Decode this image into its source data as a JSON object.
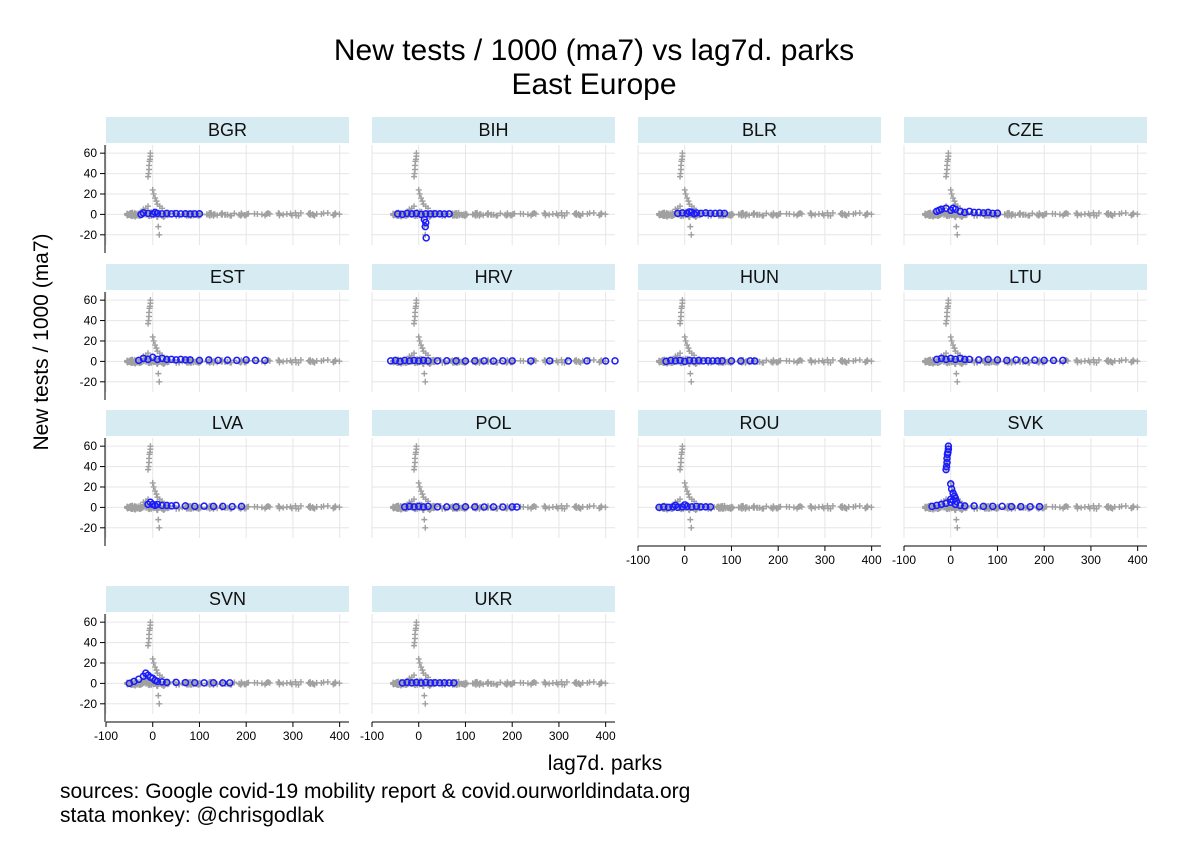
{
  "title": "New tests / 1000 (ma7) vs lag7d. parks",
  "subtitle": "East Europe",
  "ylabel": "New tests / 1000 (ma7)",
  "xlabel": "lag7d. parks",
  "sources": [
    "sources: Google covid-19 mobility report & covid.ourworldindata.org",
    "stata monkey: @chrisgodlak"
  ],
  "colors": {
    "background_points": "#a0a0a0",
    "highlight_points": "#1a1aff",
    "panel_header": "#d6ebf2",
    "grid": "#e6e6e6"
  },
  "chart_data": {
    "type": "scatter",
    "layout": "small multiples (by country), all countries in grey, highlighted country in blue",
    "xlim": [
      -100,
      420
    ],
    "ylim": [
      -30,
      68
    ],
    "xticks": [
      -100,
      0,
      100,
      200,
      300,
      400
    ],
    "yticks": [
      -20,
      0,
      20,
      40,
      60
    ],
    "grid": true,
    "background_series": {
      "marker": "plus",
      "color": "#a0a0a0",
      "band": {
        "x_from": -55,
        "x_to": 420,
        "y_center": 0,
        "y_halfwidth": 1.5
      },
      "spike_points": [
        {
          "x": -5,
          "y": 60
        },
        {
          "x": -5,
          "y": 57
        },
        {
          "x": -6,
          "y": 54
        },
        {
          "x": -7,
          "y": 52
        },
        {
          "x": -8,
          "y": 48
        },
        {
          "x": -8,
          "y": 44
        },
        {
          "x": -9,
          "y": 40
        },
        {
          "x": -10,
          "y": 37
        },
        {
          "x": 0,
          "y": 24
        },
        {
          "x": 2,
          "y": 20
        },
        {
          "x": 5,
          "y": 16
        },
        {
          "x": 8,
          "y": 13
        },
        {
          "x": 10,
          "y": 10
        },
        {
          "x": 15,
          "y": 8
        },
        {
          "x": 20,
          "y": 6
        },
        {
          "x": -10,
          "y": 8
        },
        {
          "x": -15,
          "y": 6
        },
        {
          "x": -20,
          "y": 5
        },
        {
          "x": 12,
          "y": -12
        },
        {
          "x": 14,
          "y": -20
        }
      ]
    },
    "panels": [
      {
        "name": "BGR",
        "points": [
          [
            -25,
            0
          ],
          [
            -10,
            1
          ],
          [
            0,
            0.5
          ],
          [
            10,
            1
          ],
          [
            20,
            0.5
          ],
          [
            30,
            1
          ],
          [
            40,
            0.5
          ],
          [
            50,
            0.8
          ],
          [
            60,
            0.5
          ],
          [
            70,
            0.6
          ],
          [
            80,
            0.4
          ],
          [
            90,
            0.5
          ],
          [
            100,
            0.6
          ],
          [
            -20,
            1.5
          ],
          [
            5,
            2
          ]
        ]
      },
      {
        "name": "BIH",
        "points": [
          [
            -45,
            0.5
          ],
          [
            -35,
            0
          ],
          [
            -25,
            1
          ],
          [
            -15,
            0.5
          ],
          [
            -5,
            1
          ],
          [
            5,
            0
          ],
          [
            15,
            0.5
          ],
          [
            25,
            0.5
          ],
          [
            35,
            0.6
          ],
          [
            45,
            0.5
          ],
          [
            55,
            0.4
          ],
          [
            65,
            0.5
          ],
          [
            15,
            -8
          ],
          [
            14,
            -12
          ],
          [
            16,
            -23
          ],
          [
            12,
            -5
          ]
        ]
      },
      {
        "name": "BLR",
        "points": [
          [
            -15,
            1
          ],
          [
            -5,
            1.5
          ],
          [
            5,
            1
          ],
          [
            15,
            2
          ],
          [
            25,
            1.5
          ],
          [
            35,
            1
          ],
          [
            45,
            1.5
          ],
          [
            55,
            1
          ],
          [
            65,
            1
          ],
          [
            75,
            1.2
          ],
          [
            85,
            1
          ],
          [
            10,
            2.5
          ],
          [
            20,
            0.5
          ]
        ]
      },
      {
        "name": "CZE",
        "points": [
          [
            -30,
            3
          ],
          [
            -20,
            5
          ],
          [
            -10,
            6
          ],
          [
            0,
            4
          ],
          [
            10,
            5
          ],
          [
            20,
            3
          ],
          [
            30,
            2
          ],
          [
            40,
            3
          ],
          [
            50,
            2
          ],
          [
            60,
            2
          ],
          [
            70,
            1.5
          ],
          [
            80,
            2
          ],
          [
            90,
            1
          ],
          [
            100,
            1.2
          ],
          [
            -25,
            4
          ],
          [
            5,
            6
          ]
        ]
      },
      {
        "name": "EST",
        "points": [
          [
            -30,
            1
          ],
          [
            -20,
            3
          ],
          [
            -10,
            2
          ],
          [
            0,
            4
          ],
          [
            10,
            2
          ],
          [
            20,
            3
          ],
          [
            30,
            2
          ],
          [
            40,
            2
          ],
          [
            50,
            1.5
          ],
          [
            60,
            2
          ],
          [
            70,
            1.5
          ],
          [
            80,
            1.5
          ],
          [
            100,
            1
          ],
          [
            120,
            1.5
          ],
          [
            140,
            1
          ],
          [
            160,
            1.2
          ],
          [
            180,
            1
          ],
          [
            200,
            1.5
          ],
          [
            220,
            1
          ],
          [
            240,
            1
          ]
        ]
      },
      {
        "name": "HRV",
        "points": [
          [
            -60,
            0.5
          ],
          [
            -50,
            1
          ],
          [
            -40,
            0
          ],
          [
            -30,
            1
          ],
          [
            -20,
            0.5
          ],
          [
            -10,
            1
          ],
          [
            0,
            0.5
          ],
          [
            10,
            1
          ],
          [
            20,
            0.5
          ],
          [
            40,
            0.5
          ],
          [
            60,
            0.6
          ],
          [
            80,
            0.5
          ],
          [
            100,
            0.4
          ],
          [
            120,
            0.5
          ],
          [
            140,
            0.5
          ],
          [
            160,
            0.4
          ],
          [
            180,
            0.5
          ],
          [
            200,
            0.5
          ],
          [
            240,
            0.4
          ],
          [
            280,
            0.5
          ],
          [
            320,
            0.4
          ],
          [
            360,
            0.5
          ],
          [
            400,
            0.4
          ],
          [
            420,
            0.5
          ]
        ]
      },
      {
        "name": "HUN",
        "points": [
          [
            -40,
            0
          ],
          [
            -30,
            1
          ],
          [
            -20,
            0.5
          ],
          [
            -10,
            1
          ],
          [
            0,
            0
          ],
          [
            10,
            1
          ],
          [
            20,
            0.5
          ],
          [
            30,
            1
          ],
          [
            40,
            0.5
          ],
          [
            50,
            0.6
          ],
          [
            60,
            0.5
          ],
          [
            70,
            0.5
          ],
          [
            80,
            0.5
          ],
          [
            100,
            0.5
          ],
          [
            120,
            0.4
          ],
          [
            140,
            0.5
          ],
          [
            150,
            0.4
          ]
        ]
      },
      {
        "name": "LTU",
        "points": [
          [
            -30,
            2
          ],
          [
            -20,
            3
          ],
          [
            -10,
            2
          ],
          [
            0,
            3
          ],
          [
            10,
            2
          ],
          [
            20,
            3
          ],
          [
            30,
            2
          ],
          [
            40,
            2
          ],
          [
            60,
            1.5
          ],
          [
            80,
            2
          ],
          [
            100,
            1.5
          ],
          [
            120,
            1
          ],
          [
            140,
            1.5
          ],
          [
            160,
            1
          ],
          [
            180,
            1.2
          ],
          [
            200,
            1
          ],
          [
            220,
            1
          ],
          [
            240,
            1
          ]
        ]
      },
      {
        "name": "LVA",
        "points": [
          [
            -10,
            3
          ],
          [
            -5,
            5
          ],
          [
            0,
            3
          ],
          [
            5,
            2
          ],
          [
            10,
            3
          ],
          [
            20,
            2
          ],
          [
            30,
            2
          ],
          [
            40,
            1.5
          ],
          [
            50,
            2
          ],
          [
            70,
            1.5
          ],
          [
            90,
            1
          ],
          [
            110,
            1.2
          ],
          [
            130,
            1
          ],
          [
            150,
            1
          ],
          [
            170,
            0.8
          ],
          [
            190,
            1
          ]
        ]
      },
      {
        "name": "POL",
        "points": [
          [
            -30,
            0.5
          ],
          [
            -20,
            1
          ],
          [
            -10,
            0.5
          ],
          [
            0,
            1
          ],
          [
            10,
            0.5
          ],
          [
            20,
            1
          ],
          [
            40,
            0.5
          ],
          [
            60,
            0.5
          ],
          [
            80,
            0.5
          ],
          [
            100,
            0.6
          ],
          [
            120,
            0.5
          ],
          [
            140,
            0.4
          ],
          [
            160,
            0.5
          ],
          [
            180,
            0.4
          ],
          [
            200,
            0.5
          ],
          [
            210,
            0.4
          ]
        ]
      },
      {
        "name": "ROU",
        "points": [
          [
            -55,
            0
          ],
          [
            -45,
            0.5
          ],
          [
            -35,
            0
          ],
          [
            -25,
            0.5
          ],
          [
            -15,
            0
          ],
          [
            -5,
            0.5
          ],
          [
            5,
            1
          ],
          [
            15,
            0.5
          ],
          [
            25,
            1
          ],
          [
            35,
            0.5
          ],
          [
            45,
            0.5
          ],
          [
            55,
            0.5
          ],
          [
            -20,
            2
          ],
          [
            0,
            2.5
          ]
        ]
      },
      {
        "name": "SVK",
        "points": [
          [
            -5,
            60
          ],
          [
            -5,
            57
          ],
          [
            -6,
            54
          ],
          [
            -7,
            52
          ],
          [
            -8,
            48
          ],
          [
            -8,
            44
          ],
          [
            -9,
            40
          ],
          [
            -10,
            37
          ],
          [
            0,
            23
          ],
          [
            2,
            18
          ],
          [
            5,
            14
          ],
          [
            8,
            11
          ],
          [
            10,
            9
          ],
          [
            0,
            8
          ],
          [
            5,
            7
          ],
          [
            12,
            6
          ],
          [
            -40,
            1
          ],
          [
            -30,
            2
          ],
          [
            -20,
            3
          ],
          [
            -10,
            4
          ],
          [
            0,
            5
          ],
          [
            10,
            3
          ],
          [
            20,
            2
          ],
          [
            30,
            1.5
          ],
          [
            50,
            1.5
          ],
          [
            70,
            1
          ],
          [
            90,
            1
          ],
          [
            110,
            1
          ],
          [
            130,
            0.8
          ],
          [
            150,
            0.8
          ],
          [
            170,
            0.6
          ],
          [
            190,
            0.8
          ]
        ]
      },
      {
        "name": "SVN",
        "points": [
          [
            -50,
            0
          ],
          [
            -40,
            2
          ],
          [
            -30,
            4
          ],
          [
            -20,
            7
          ],
          [
            -15,
            10
          ],
          [
            -10,
            8
          ],
          [
            -5,
            6
          ],
          [
            0,
            5
          ],
          [
            5,
            3
          ],
          [
            10,
            2
          ],
          [
            20,
            1.5
          ],
          [
            30,
            1
          ],
          [
            50,
            1
          ],
          [
            70,
            0.8
          ],
          [
            90,
            0.6
          ],
          [
            110,
            0.5
          ],
          [
            130,
            0.6
          ],
          [
            150,
            0.5
          ],
          [
            165,
            0.5
          ]
        ]
      },
      {
        "name": "UKR",
        "points": [
          [
            -35,
            0.5
          ],
          [
            -25,
            1
          ],
          [
            -15,
            0.5
          ],
          [
            -5,
            1
          ],
          [
            5,
            0.5
          ],
          [
            15,
            1
          ],
          [
            25,
            0.5
          ],
          [
            35,
            0.6
          ],
          [
            45,
            0.5
          ],
          [
            55,
            0.6
          ],
          [
            65,
            0.5
          ],
          [
            75,
            0.5
          ]
        ]
      }
    ]
  }
}
